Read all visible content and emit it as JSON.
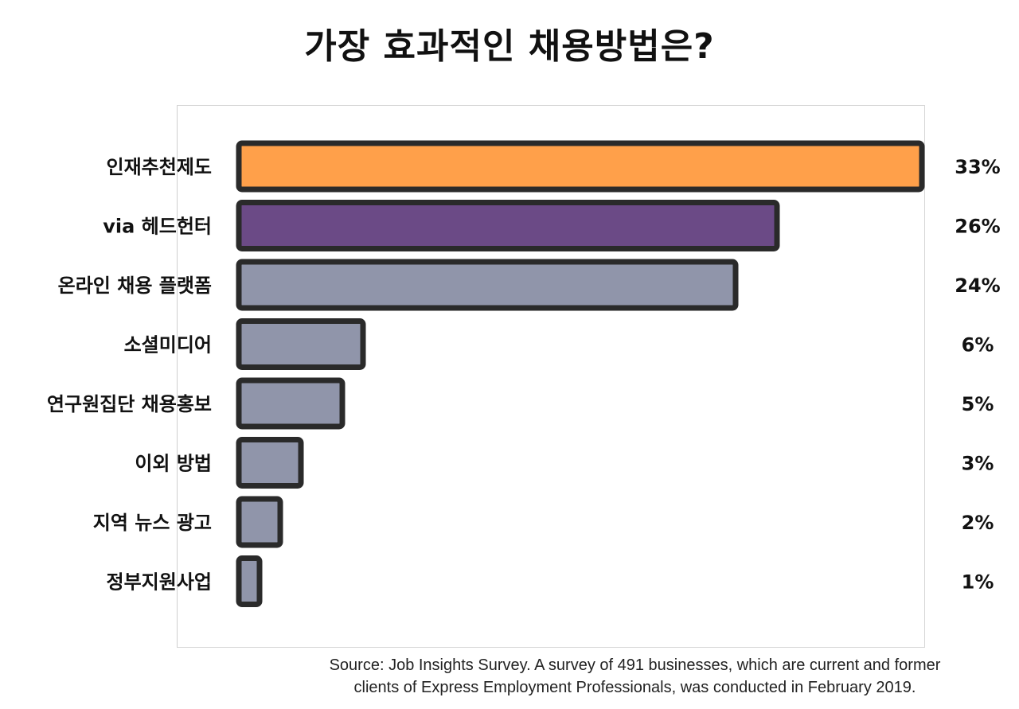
{
  "chart_data": {
    "type": "bar",
    "orientation": "horizontal",
    "title": "가장 효과적인 채용방법은?",
    "categories": [
      "인재추천제도",
      "via 헤드헌터",
      "온라인 채용 플랫폼",
      "소셜미디어",
      "연구원집단 채용홍보",
      "이외 방법",
      "지역 뉴스 광고",
      "정부지원사업"
    ],
    "values": [
      33,
      26,
      24,
      6,
      5,
      3,
      2,
      1
    ],
    "value_labels": [
      "33%",
      "26%",
      "24%",
      "6%",
      "5%",
      "3%",
      "2%",
      "1%"
    ],
    "unit": "%",
    "xlim": [
      0,
      33
    ],
    "grid": false,
    "legend": "none",
    "colors": [
      "#FFA04A",
      "#6B4A86",
      "#9095AA",
      "#9095AA",
      "#9095AA",
      "#9095AA",
      "#9095AA",
      "#9095AA"
    ],
    "outline_color": "#2a2a2a"
  },
  "source": {
    "line1": "Source: Job Insights Survey. A survey of 491 businesses, which are current and former",
    "line2": "clients of Express Employment Professionals, was conducted in February 2019."
  }
}
